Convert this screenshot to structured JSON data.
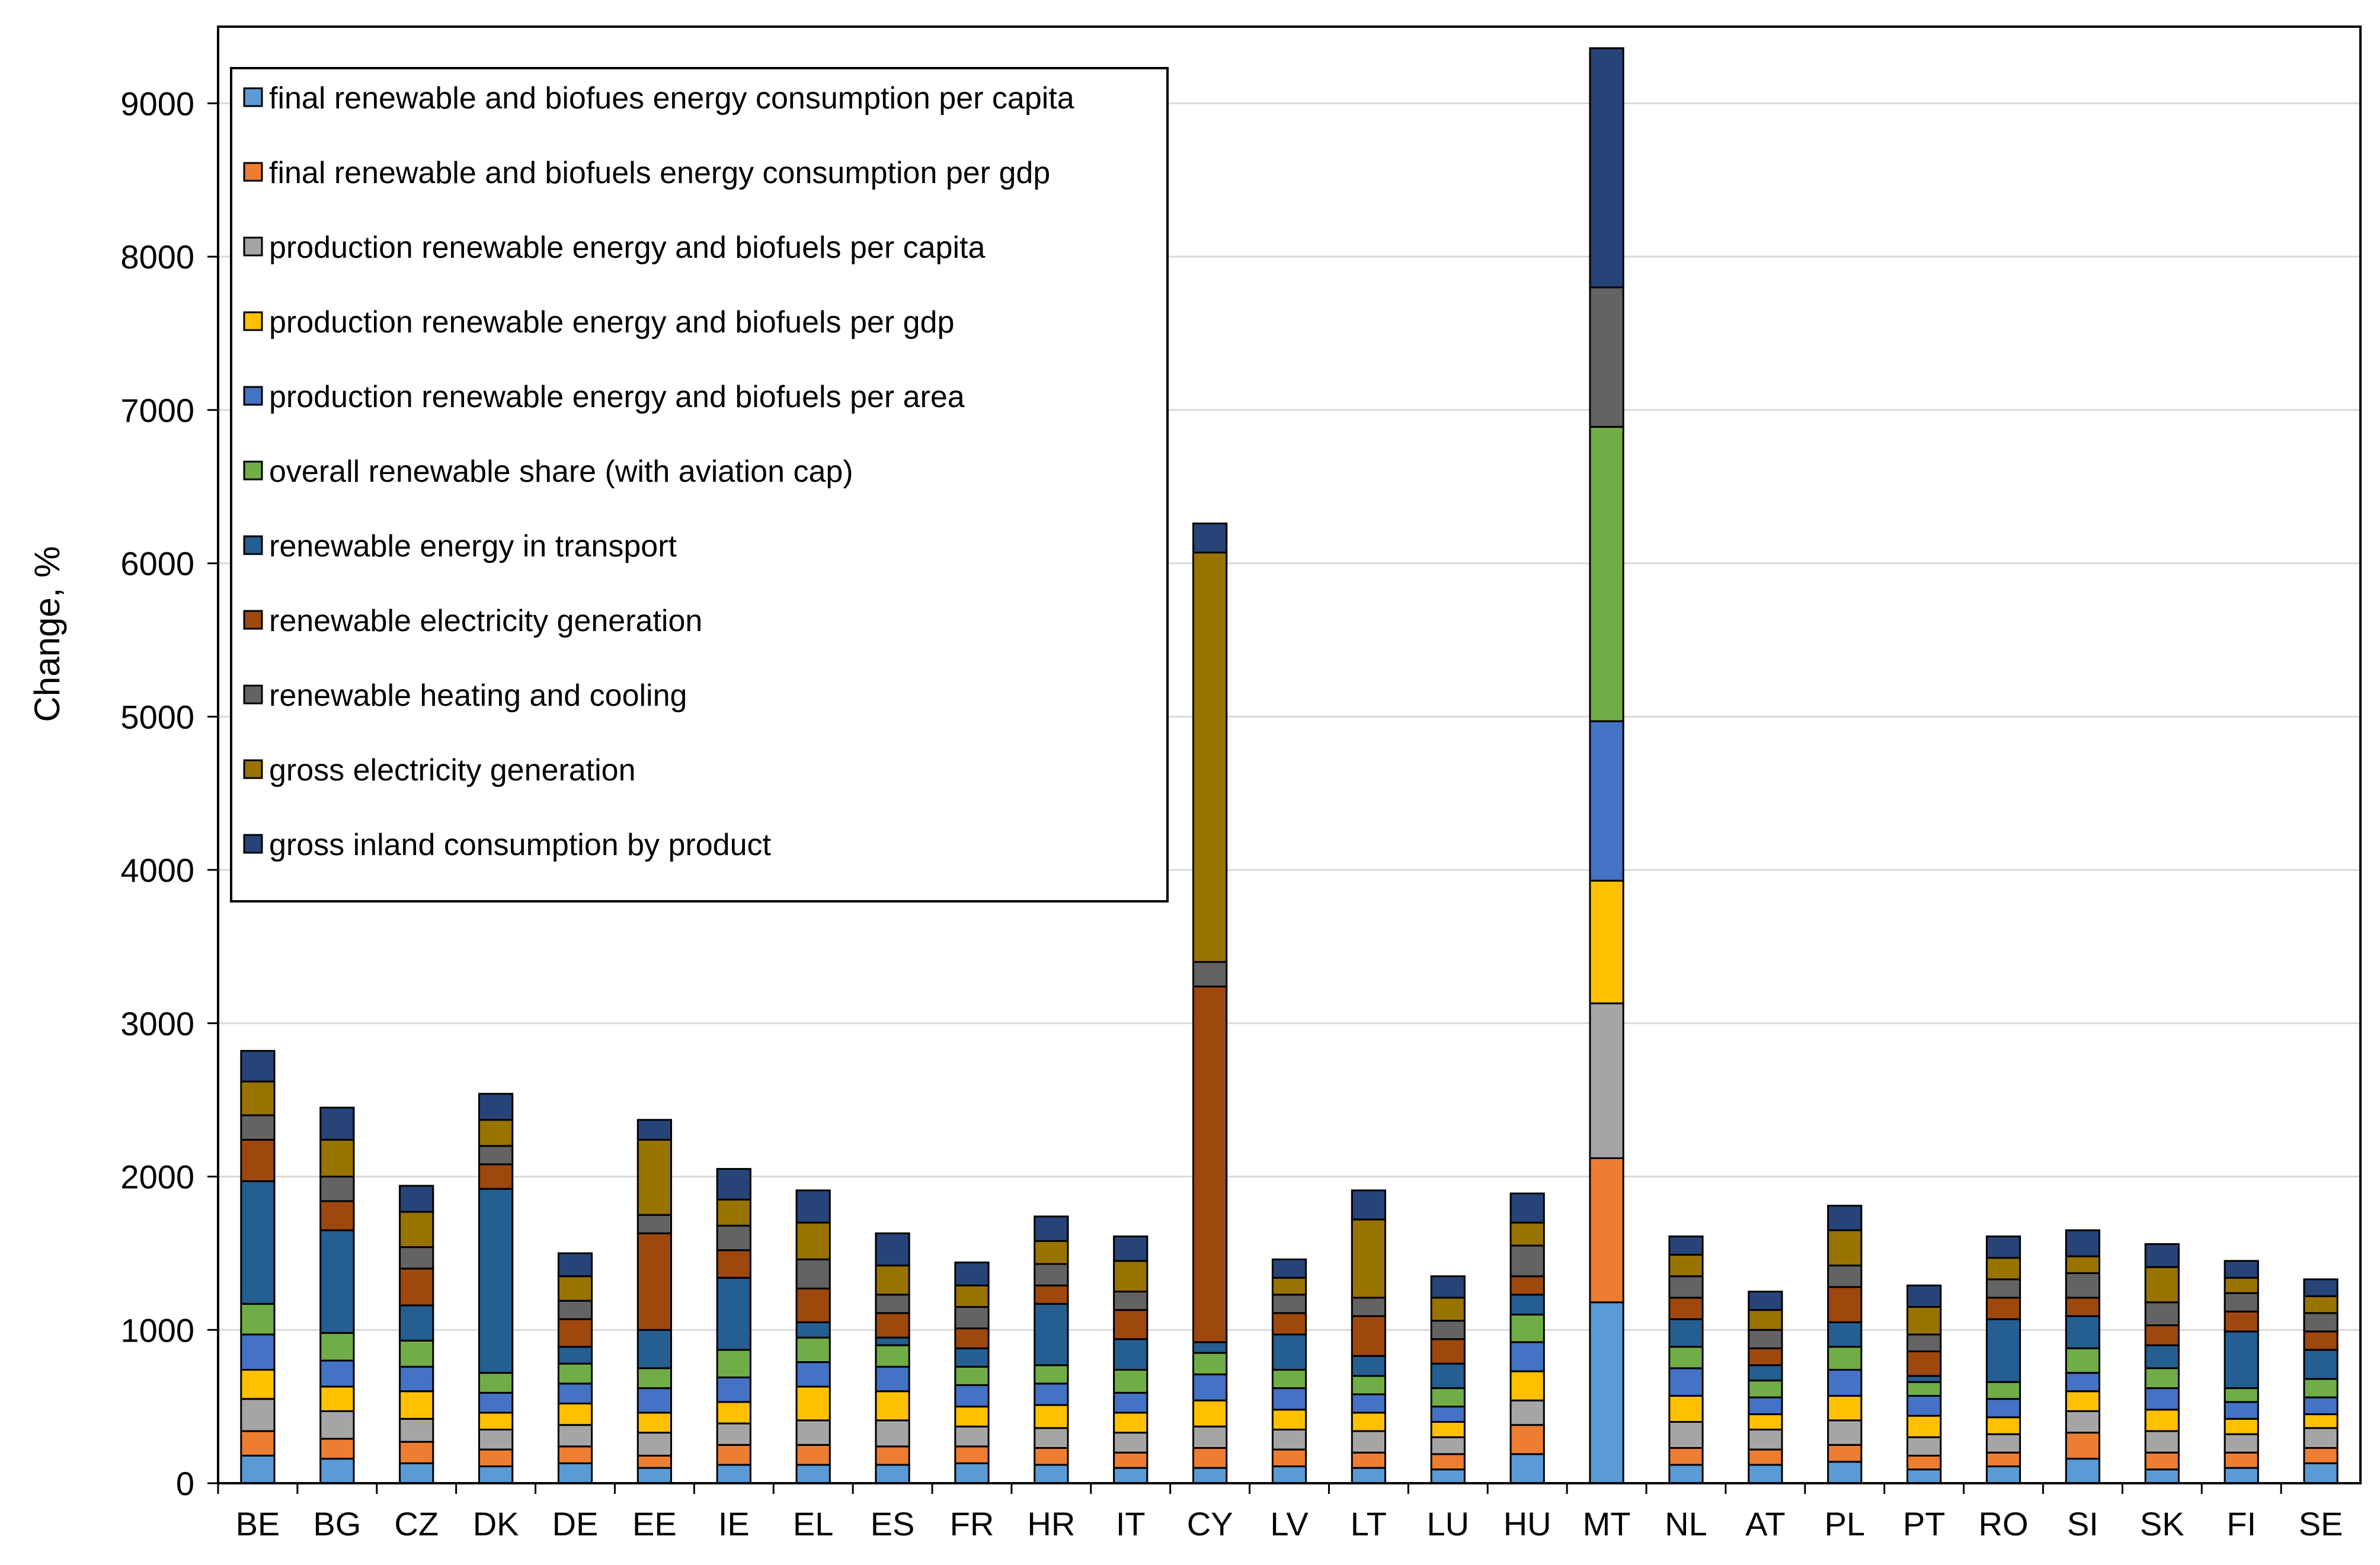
{
  "chart_data": {
    "type": "bar",
    "stacked": true,
    "title": "",
    "xlabel": "",
    "ylabel": "Change, %",
    "ylim": [
      0,
      9500
    ],
    "yticks": [
      0,
      1000,
      2000,
      3000,
      4000,
      5000,
      6000,
      7000,
      8000,
      9000
    ],
    "grid": true,
    "legend_position": "top-left",
    "categories": [
      "BE",
      "BG",
      "CZ",
      "DK",
      "DE",
      "EE",
      "IE",
      "EL",
      "ES",
      "FR",
      "HR",
      "IT",
      "CY",
      "LV",
      "LT",
      "LU",
      "HU",
      "MT",
      "NL",
      "AT",
      "PL",
      "PT",
      "RO",
      "SI",
      "SK",
      "FI",
      "SE"
    ],
    "series": [
      {
        "name": "final renewable and biofues energy consumption per capita",
        "color": "#5b9bd5",
        "values": [
          180,
          160,
          130,
          110,
          130,
          100,
          120,
          120,
          120,
          130,
          120,
          100,
          100,
          110,
          100,
          90,
          190,
          1180,
          120,
          120,
          140,
          90,
          110,
          160,
          90,
          100,
          130
        ]
      },
      {
        "name": "final renewable and biofuels energy consumption per gdp",
        "color": "#ed7d31",
        "values": [
          160,
          130,
          140,
          110,
          110,
          80,
          130,
          130,
          120,
          110,
          110,
          100,
          130,
          110,
          100,
          100,
          190,
          940,
          110,
          100,
          110,
          90,
          90,
          170,
          110,
          100,
          100
        ]
      },
      {
        "name": "production renewable energy and biofuels per capita",
        "color": "#a5a5a5",
        "values": [
          210,
          180,
          150,
          130,
          140,
          150,
          140,
          160,
          170,
          130,
          130,
          130,
          140,
          130,
          140,
          110,
          160,
          1010,
          170,
          130,
          160,
          120,
          120,
          140,
          140,
          120,
          130
        ]
      },
      {
        "name": "production renewable energy and biofuels per gdp",
        "color": "#ffc000",
        "values": [
          190,
          160,
          180,
          110,
          140,
          130,
          140,
          220,
          190,
          130,
          150,
          130,
          170,
          130,
          120,
          100,
          190,
          800,
          170,
          100,
          160,
          140,
          110,
          130,
          140,
          100,
          90
        ]
      },
      {
        "name": "production renewable energy and biofuels per area",
        "color": "#4472c4",
        "values": [
          230,
          170,
          160,
          130,
          130,
          160,
          160,
          160,
          160,
          140,
          140,
          130,
          170,
          140,
          120,
          100,
          190,
          1040,
          180,
          110,
          170,
          130,
          120,
          120,
          140,
          110,
          110
        ]
      },
      {
        "name": "overall renewable share (with aviation cap)",
        "color": "#70ad47",
        "values": [
          200,
          180,
          170,
          130,
          130,
          130,
          180,
          160,
          140,
          120,
          120,
          150,
          140,
          120,
          120,
          120,
          180,
          1920,
          140,
          110,
          150,
          90,
          110,
          160,
          130,
          90,
          120
        ]
      },
      {
        "name": "renewable energy in transport",
        "color": "#255e91",
        "values": [
          800,
          670,
          230,
          1200,
          110,
          250,
          470,
          100,
          50,
          120,
          400,
          200,
          70,
          230,
          130,
          160,
          130,
          0,
          180,
          100,
          160,
          40,
          410,
          210,
          150,
          370,
          190
        ]
      },
      {
        "name": "renewable electricity generation",
        "color": "#9e480e",
        "values": [
          270,
          190,
          240,
          160,
          180,
          630,
          180,
          220,
          160,
          130,
          120,
          190,
          2320,
          140,
          260,
          160,
          120,
          0,
          140,
          110,
          230,
          160,
          140,
          120,
          130,
          130,
          120
        ]
      },
      {
        "name": "renewable heating and cooling",
        "color": "#636363",
        "values": [
          160,
          160,
          140,
          120,
          120,
          120,
          160,
          190,
          120,
          140,
          140,
          120,
          160,
          120,
          120,
          120,
          200,
          910,
          140,
          120,
          140,
          110,
          120,
          160,
          150,
          120,
          120
        ]
      },
      {
        "name": "gross electricity generation",
        "color": "#997300",
        "values": [
          220,
          240,
          230,
          170,
          160,
          490,
          170,
          240,
          190,
          140,
          150,
          200,
          2670,
          110,
          510,
          150,
          150,
          0,
          140,
          130,
          230,
          180,
          140,
          110,
          230,
          100,
          110
        ]
      },
      {
        "name": "gross inland consumption by product",
        "color": "#264478",
        "values": [
          200,
          210,
          170,
          170,
          150,
          130,
          200,
          210,
          210,
          150,
          160,
          160,
          190,
          120,
          190,
          140,
          190,
          1560,
          120,
          120,
          160,
          140,
          140,
          170,
          150,
          110,
          110
        ]
      }
    ]
  }
}
